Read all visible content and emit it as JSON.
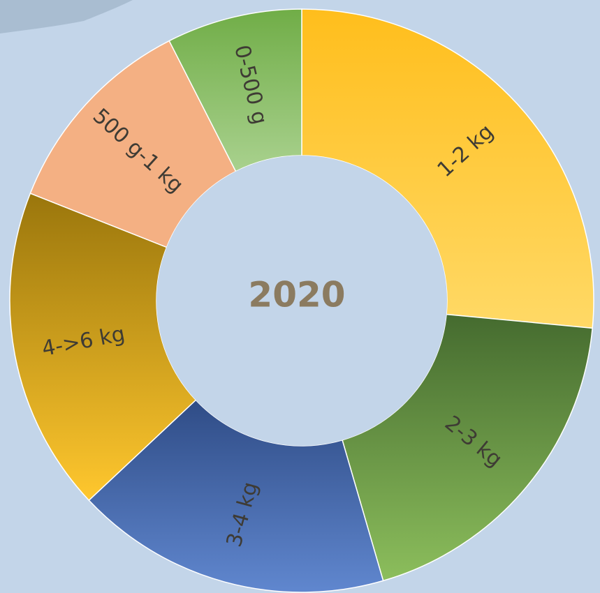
{
  "chart_data": {
    "type": "pie",
    "variant": "donut",
    "center_label": "2020",
    "categories": [
      "1-2 kg",
      "2-3 kg",
      "3-4 kg",
      "4->6 kg",
      "500 g-1 kg",
      "0-500 g"
    ],
    "values": [
      26.5,
      19.0,
      17.5,
      18.0,
      11.5,
      7.5
    ],
    "unit": "%",
    "colors": [
      [
        "#ffbe1c",
        "#ffd966"
      ],
      [
        "#456b2f",
        "#8cbe5c"
      ],
      [
        "#2f4c86",
        "#6087cf"
      ],
      [
        "#9a760c",
        "#ffc72e"
      ],
      [
        "#f4b083",
        "#f4b083"
      ],
      [
        "#70ad47",
        "#a9d18e"
      ]
    ]
  }
}
